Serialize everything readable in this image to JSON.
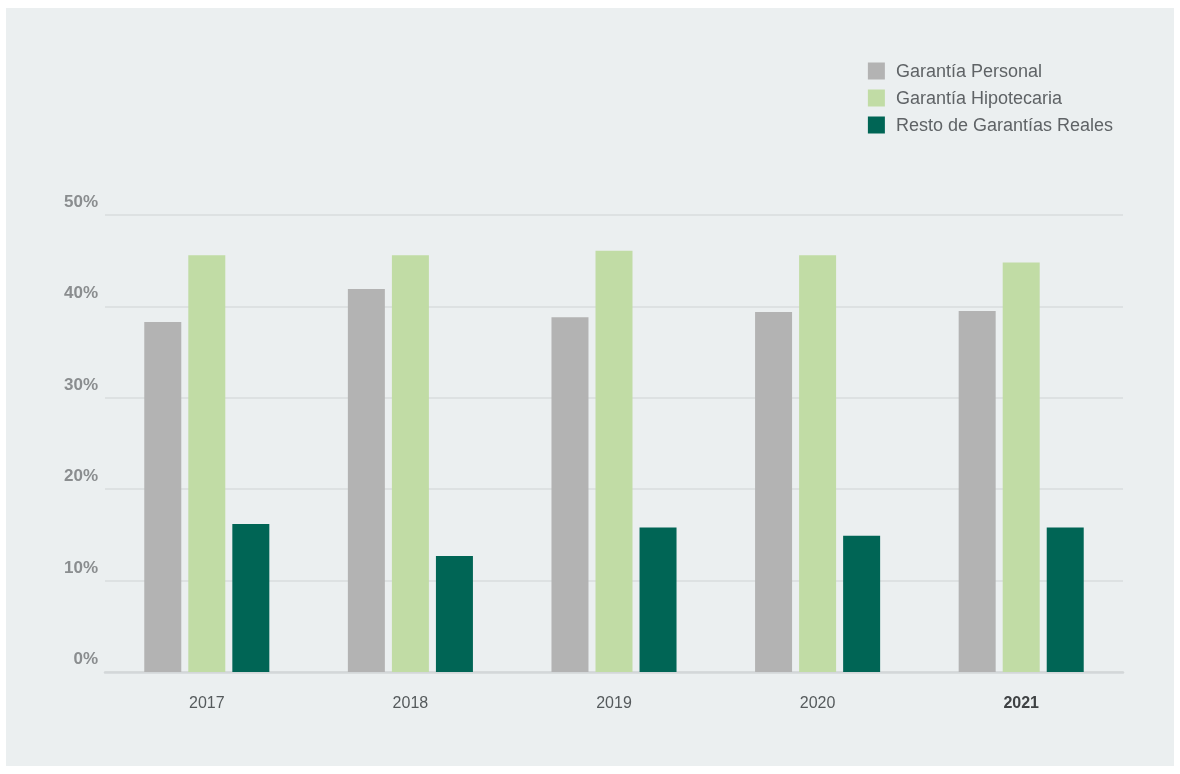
{
  "chart_data": {
    "type": "bar",
    "categories": [
      "2017",
      "2018",
      "2019",
      "2020",
      "2021"
    ],
    "series": [
      {
        "name": "Garantía Personal",
        "color": "#b3b3b3",
        "values": [
          38.3,
          41.9,
          38.8,
          39.4,
          39.5
        ]
      },
      {
        "name": "Garantía Hipotecaria",
        "color": "#c1dca5",
        "values": [
          45.6,
          45.6,
          46.1,
          45.6,
          44.8
        ]
      },
      {
        "name": "Resto de Garantías Reales",
        "color": "#006555",
        "values": [
          16.2,
          12.7,
          15.8,
          14.9,
          15.8
        ]
      }
    ],
    "ylim": [
      0,
      50
    ],
    "yticks": [
      {
        "value": 0,
        "label": "0%"
      },
      {
        "value": 10,
        "label": "10%"
      },
      {
        "value": 20,
        "label": "20%"
      },
      {
        "value": 30,
        "label": "30%"
      },
      {
        "value": 40,
        "label": "40%"
      },
      {
        "value": 50,
        "label": "50%"
      }
    ],
    "grid": "y",
    "legend": "top right"
  }
}
